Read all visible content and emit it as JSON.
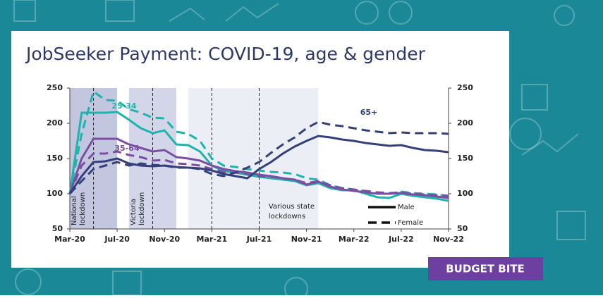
{
  "chart_data": {
    "type": "line",
    "title": "JobSeeker Payment: COVID-19, age & gender",
    "badge": "BUDGET BITE",
    "categories": [
      "Mar-20",
      null,
      null,
      null,
      "Jul-20",
      null,
      null,
      null,
      "Nov-20",
      null,
      null,
      null,
      "Mar-21",
      null,
      null,
      null,
      "Jul-21",
      null,
      null,
      null,
      "Nov-21",
      null,
      null,
      null,
      "Mar-22",
      null,
      null,
      null,
      "Jul-22",
      null,
      null,
      null,
      "Nov-22"
    ],
    "ylim": [
      50,
      250
    ],
    "yticks": [
      50,
      100,
      150,
      200,
      250
    ],
    "y2lim": [
      50,
      250
    ],
    "y2ticks": [
      50,
      100,
      150,
      200,
      250
    ],
    "periods": [
      {
        "start": 0,
        "end": 4,
        "color": "#c3c6df",
        "label": [
          "National",
          "lockdown"
        ],
        "vertical": true
      },
      {
        "start": 5,
        "end": 9,
        "color": "#d3d6e9",
        "label": [
          "Victoria",
          "lockdown"
        ],
        "vertical": true
      },
      {
        "start": 10,
        "end": 21,
        "color": "#eceef6",
        "label": [
          "Various state",
          "lockdowns"
        ],
        "vertical": false
      }
    ],
    "markers": [
      2,
      7,
      12,
      16
    ],
    "groups": [
      {
        "label": "25-34",
        "color": "#1fb3ad",
        "series": [
          {
            "style": "solid",
            "values": [
              100,
              215,
              215,
              215,
              216,
              205,
              193,
              186,
              190,
              170,
              169,
              160,
              140,
              132,
              130,
              127,
              124,
              122,
              120,
              118,
              112,
              115,
              108,
              105,
              105,
              100,
              95,
              94,
              100,
              97,
              95,
              93,
              90
            ]
          },
          {
            "style": "dashed",
            "values": [
              100,
              185,
              245,
              233,
              232,
              220,
              215,
              208,
              207,
              188,
              185,
              175,
              150,
              140,
              138,
              135,
              133,
              131,
              130,
              128,
              122,
              120,
              112,
              108,
              106,
              103,
              100,
              100,
              103,
              101,
              100,
              99,
              97
            ]
          }
        ]
      },
      {
        "label": "35-64",
        "color": "#7a4fa3",
        "series": [
          {
            "style": "solid",
            "values": [
              100,
              150,
              178,
              178,
              178,
              170,
              165,
              160,
              162,
              152,
              150,
              147,
              140,
              135,
              132,
              130,
              127,
              125,
              122,
              120,
              113,
              117,
              110,
              106,
              104,
              102,
              100,
              100,
              101,
              99,
              98,
              96,
              94
            ]
          },
          {
            "style": "dashed",
            "values": [
              100,
              140,
              157,
              157,
              160,
              155,
              152,
              147,
              148,
              143,
              142,
              140,
              135,
              131,
              130,
              128,
              125,
              124,
              122,
              120,
              115,
              118,
              112,
              108,
              106,
              104,
              102,
              101,
              102,
              100,
              99,
              98,
              97
            ]
          }
        ]
      },
      {
        "label": "65+",
        "color": "#34407a",
        "series": [
          {
            "style": "solid",
            "values": [
              100,
              125,
              145,
              146,
              150,
              143,
              140,
              139,
              140,
              138,
              137,
              136,
              133,
              128,
              125,
              122,
              135,
              145,
              157,
              167,
              175,
              182,
              180,
              177,
              175,
              172,
              170,
              168,
              169,
              165,
              162,
              161,
              159
            ]
          },
          {
            "style": "dashed",
            "values": [
              100,
              118,
              135,
              140,
              145,
              140,
              143,
              141,
              140,
              137,
              137,
              135,
              128,
              125,
              130,
              137,
              145,
              158,
              170,
              180,
              193,
              202,
              198,
              196,
              193,
              190,
              188,
              186,
              187,
              186,
              186,
              186,
              185
            ]
          }
        ]
      }
    ],
    "legend": [
      {
        "label": "Male",
        "style": "solid"
      },
      {
        "label": "Female",
        "style": "dashed"
      }
    ]
  }
}
